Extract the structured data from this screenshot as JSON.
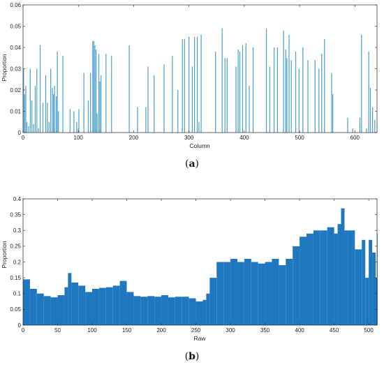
{
  "chart_data": [
    {
      "type": "bar",
      "caption": "(a)",
      "caption_letter": "a",
      "xlabel": "Column",
      "ylabel": "Proportion",
      "xlim": [
        0,
        640
      ],
      "ylim": [
        0,
        0.06
      ],
      "xticks": [
        0,
        100,
        200,
        300,
        400,
        500,
        600
      ],
      "yticks": [
        0,
        0.01,
        0.02,
        0.03,
        0.04,
        0.05,
        0.06
      ],
      "bar_color": "#4a9fcf",
      "x": [
        1,
        3,
        5,
        7,
        10,
        13,
        16,
        19,
        22,
        25,
        28,
        31,
        36,
        41,
        44,
        47,
        50,
        53,
        55,
        57,
        60,
        62,
        64,
        72,
        85,
        92,
        97,
        100,
        101,
        110,
        118,
        122,
        126,
        128,
        130,
        132,
        134,
        137,
        139,
        141,
        150,
        160,
        192,
        207,
        222,
        226,
        237,
        255,
        270,
        280,
        288,
        292,
        300,
        306,
        310,
        315,
        318,
        322,
        348,
        360,
        365,
        369,
        385,
        389,
        392,
        397,
        403,
        409,
        416,
        440,
        446,
        454,
        460,
        471,
        475,
        477,
        481,
        485,
        493,
        499,
        506,
        515,
        528,
        535,
        540,
        545,
        558,
        560,
        587,
        596,
        609,
        612,
        621,
        625,
        628,
        632,
        636
      ],
      "values": [
        0.03,
        0.018,
        0.022,
        0.005,
        0.003,
        0.03,
        0.015,
        0.004,
        0.022,
        0.03,
        0.002,
        0.041,
        0.014,
        0.027,
        0.014,
        0.005,
        0.03,
        0.021,
        0.018,
        0.022,
        0.017,
        0.038,
        0.01,
        0.036,
        0.011,
        0.01,
        0.005,
        0.002,
        0.011,
        0.028,
        0.015,
        0.028,
        0.043,
        0.043,
        0.041,
        0.039,
        0.009,
        0.037,
        0.024,
        0.027,
        0.037,
        0.036,
        0.041,
        0.012,
        0.012,
        0.031,
        0.027,
        0.032,
        0.036,
        0.02,
        0.044,
        0.044,
        0.045,
        0.031,
        0.045,
        0.045,
        0.005,
        0.046,
        0.038,
        0.049,
        0.035,
        0.035,
        0.031,
        0.039,
        0.038,
        0.041,
        0.042,
        0.022,
        0.04,
        0.049,
        0.031,
        0.04,
        0.04,
        0.048,
        0.039,
        0.035,
        0.046,
        0.034,
        0.038,
        0.03,
        0.04,
        0.034,
        0.034,
        0.03,
        0.037,
        0.044,
        0.028,
        0.018,
        0.007,
        0.002,
        0.007,
        0.046,
        0.002,
        0.038,
        0.021,
        0.012,
        0.006
      ]
    },
    {
      "type": "bar",
      "caption": "(b)",
      "caption_letter": "b",
      "xlabel": "Raw",
      "ylabel": "Proportion",
      "xlim": [
        0,
        512
      ],
      "ylim": [
        0,
        0.4
      ],
      "xticks": [
        0,
        50,
        100,
        150,
        200,
        250,
        300,
        350,
        400,
        450,
        500
      ],
      "yticks": [
        0,
        0.05,
        0.1,
        0.15,
        0.2,
        0.25,
        0.3,
        0.35,
        0.4
      ],
      "bar_color": "#1f77bf",
      "x": [
        0,
        10,
        20,
        30,
        40,
        50,
        60,
        65,
        70,
        80,
        90,
        100,
        110,
        120,
        130,
        140,
        150,
        160,
        170,
        180,
        190,
        200,
        210,
        220,
        230,
        240,
        250,
        260,
        265,
        270,
        280,
        290,
        300,
        310,
        320,
        330,
        340,
        350,
        360,
        370,
        380,
        390,
        400,
        410,
        420,
        430,
        440,
        450,
        455,
        460,
        465,
        470,
        480,
        490,
        495,
        500,
        505,
        510,
        512
      ],
      "values": [
        0.145,
        0.115,
        0.1,
        0.092,
        0.088,
        0.095,
        0.12,
        0.165,
        0.135,
        0.125,
        0.105,
        0.115,
        0.118,
        0.12,
        0.125,
        0.14,
        0.105,
        0.092,
        0.09,
        0.092,
        0.09,
        0.095,
        0.088,
        0.09,
        0.09,
        0.085,
        0.075,
        0.08,
        0.1,
        0.15,
        0.2,
        0.2,
        0.21,
        0.2,
        0.21,
        0.2,
        0.195,
        0.2,
        0.21,
        0.19,
        0.21,
        0.25,
        0.28,
        0.29,
        0.3,
        0.3,
        0.31,
        0.29,
        0.32,
        0.37,
        0.3,
        0.3,
        0.24,
        0.27,
        0.15,
        0.27,
        0.23,
        0.15,
        0.29
      ]
    }
  ]
}
